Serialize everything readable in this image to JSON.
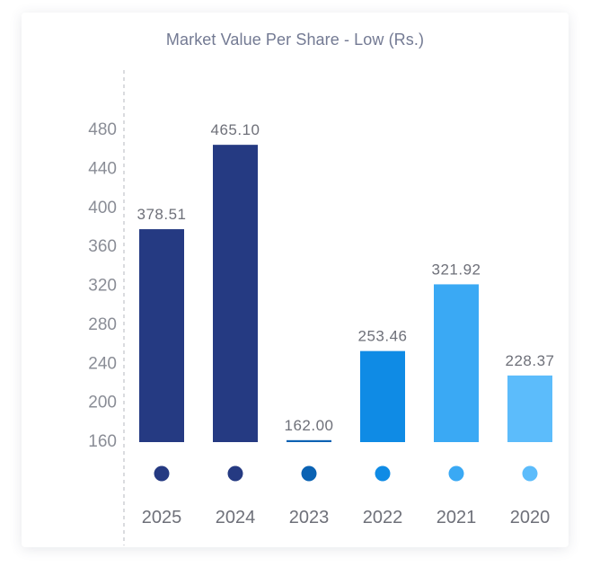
{
  "chart_data": {
    "type": "bar",
    "title": "Market Value Per Share - Low (Rs.)",
    "xlabel": "",
    "ylabel": "",
    "ylim": [
      160,
      480
    ],
    "yticks": [
      160,
      200,
      240,
      280,
      320,
      360,
      400,
      440,
      480
    ],
    "categories": [
      "2025",
      "2024",
      "2023",
      "2022",
      "2021",
      "2020"
    ],
    "values": [
      378.51,
      465.1,
      162.0,
      253.46,
      321.92,
      228.37
    ],
    "value_labels": [
      "378.51",
      "465.10",
      "162.00",
      "253.46",
      "321.92",
      "228.37"
    ],
    "colors": [
      "#253a82",
      "#253a82",
      "#0a62b3",
      "#0f8be5",
      "#3aa9f4",
      "#5cbcfb"
    ],
    "grid": false,
    "legend": "none"
  }
}
